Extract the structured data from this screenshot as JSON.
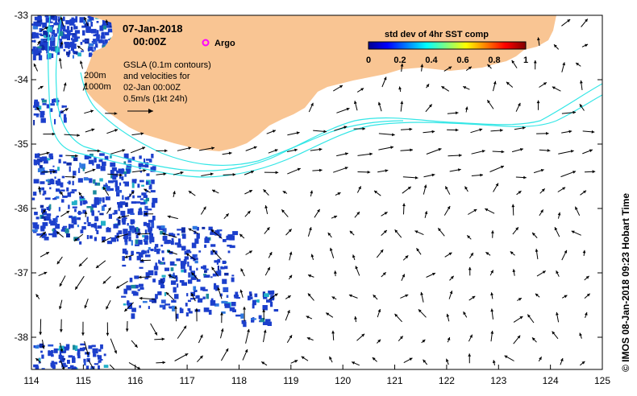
{
  "title": {
    "date": "07-Jan-2018",
    "time": "00:00Z"
  },
  "argo_label": "Argo",
  "depth_labels": [
    "200m",
    "1000m"
  ],
  "gsla_note": [
    "GSLA (0.1m contours)",
    "and velocities for",
    "02-Jan 00:00Z",
    "0.5m/s (1kt 24h)"
  ],
  "colorbar": {
    "title": "std dev of 4hr SST comp",
    "ticks": [
      "0",
      "0.2",
      "0.4",
      "0.6",
      "0.8",
      "1"
    ]
  },
  "credit": "© IMOS 08-Jan-2018 09:23 Hobart Time",
  "axes": {
    "lon_range": [
      114,
      125
    ],
    "lat_range": [
      -38.5,
      -33
    ],
    "x_ticks": [
      "114",
      "115",
      "116",
      "117",
      "118",
      "119",
      "120",
      "121",
      "122",
      "123",
      "124",
      "125"
    ],
    "y_ticks": [
      "-33",
      "-34",
      "-35",
      "-36",
      "-37",
      "-38"
    ]
  },
  "colors": {
    "land": "#f9c593",
    "contour": "#33e6e6",
    "sst_patch": "#1c3fcc",
    "argo": "#ff00ff"
  }
}
